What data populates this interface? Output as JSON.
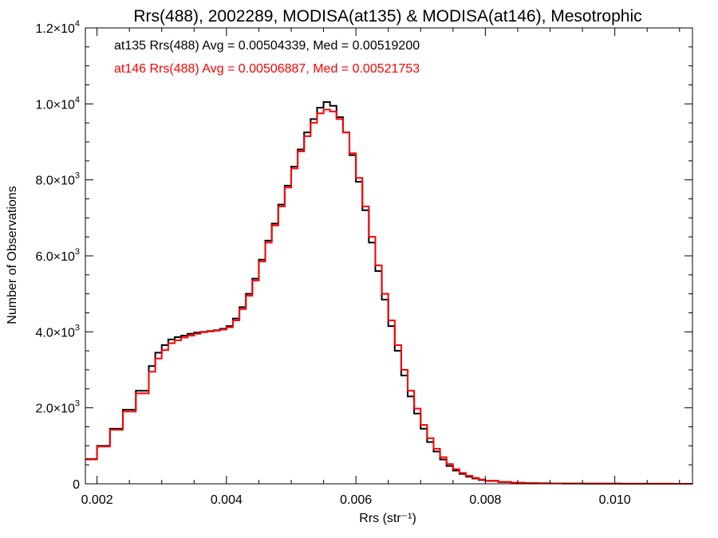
{
  "chart_data": {
    "type": "line",
    "title": "Rrs(488), 2002289, MODISA(at135) & MODISA(at146), Mesotrophic",
    "xlabel": "Rrs (str⁻¹)",
    "ylabel": "Number of Observations",
    "xlim": [
      0.00182,
      0.0112
    ],
    "ylim": [
      0,
      12000
    ],
    "grid": false,
    "legend_placement": "top-left",
    "x_ticks": [
      {
        "value": 0.002,
        "label": "0.002"
      },
      {
        "value": 0.004,
        "label": "0.004"
      },
      {
        "value": 0.006,
        "label": "0.006"
      },
      {
        "value": 0.008,
        "label": "0.008"
      },
      {
        "value": 0.01,
        "label": "0.010"
      }
    ],
    "y_ticks": [
      {
        "value": 0,
        "mantissa": "0",
        "exponent": ""
      },
      {
        "value": 2000,
        "mantissa": "2.0×10",
        "exponent": "3"
      },
      {
        "value": 4000,
        "mantissa": "4.0×10",
        "exponent": "3"
      },
      {
        "value": 6000,
        "mantissa": "6.0×10",
        "exponent": "3"
      },
      {
        "value": 8000,
        "mantissa": "8.0×10",
        "exponent": "3"
      },
      {
        "value": 10000,
        "mantissa": "1.0×10",
        "exponent": "4"
      },
      {
        "value": 12000,
        "mantissa": "1.2×10",
        "exponent": "4"
      }
    ],
    "series": [
      {
        "name": "at135",
        "legend_text": "at135 Rrs(488) Avg = 0.00504339, Med = 0.00519200",
        "color": "#000000",
        "x": [
          0.00182,
          0.002,
          0.0022,
          0.0024,
          0.0026,
          0.0028,
          0.0029,
          0.003,
          0.0031,
          0.0032,
          0.0033,
          0.0034,
          0.0035,
          0.0036,
          0.0037,
          0.0038,
          0.0039,
          0.004,
          0.0041,
          0.0042,
          0.0043,
          0.0044,
          0.0045,
          0.0046,
          0.0047,
          0.0048,
          0.0049,
          0.005,
          0.0051,
          0.0052,
          0.0053,
          0.0054,
          0.0055,
          0.0056,
          0.0057,
          0.0058,
          0.0059,
          0.006,
          0.0061,
          0.0062,
          0.0063,
          0.0064,
          0.0065,
          0.0066,
          0.0067,
          0.0068,
          0.0069,
          0.007,
          0.0071,
          0.0072,
          0.0073,
          0.0074,
          0.0075,
          0.0076,
          0.0077,
          0.0078,
          0.0079,
          0.008,
          0.0082,
          0.0084,
          0.0086,
          0.0088,
          0.009,
          0.0092,
          0.0095,
          0.0098,
          0.0101,
          0.0105,
          0.0109,
          0.0112
        ],
        "y": [
          650,
          1000,
          1450,
          1950,
          2450,
          3100,
          3450,
          3650,
          3800,
          3860,
          3900,
          3950,
          3980,
          4000,
          4020,
          4040,
          4080,
          4150,
          4350,
          4650,
          5000,
          5400,
          5900,
          6400,
          6850,
          7350,
          7850,
          8350,
          8800,
          9250,
          9600,
          9900,
          10050,
          9950,
          9650,
          9250,
          8650,
          7950,
          7200,
          6350,
          5600,
          4850,
          4150,
          3500,
          2850,
          2300,
          1850,
          1450,
          1100,
          850,
          640,
          470,
          350,
          260,
          190,
          140,
          100,
          75,
          45,
          28,
          20,
          14,
          10,
          8,
          6,
          4,
          3,
          2,
          1,
          0
        ]
      },
      {
        "name": "at146",
        "legend_text": "at146 Rrs(488) Avg = 0.00506887, Med = 0.00521753",
        "color": "#ff0000",
        "x": [
          0.00182,
          0.002,
          0.0022,
          0.0024,
          0.0026,
          0.0028,
          0.0029,
          0.003,
          0.0031,
          0.0032,
          0.0033,
          0.0034,
          0.0035,
          0.0036,
          0.0037,
          0.0038,
          0.0039,
          0.004,
          0.0041,
          0.0042,
          0.0043,
          0.0044,
          0.0045,
          0.0046,
          0.0047,
          0.0048,
          0.0049,
          0.005,
          0.0051,
          0.0052,
          0.0053,
          0.0054,
          0.0055,
          0.0056,
          0.0057,
          0.0058,
          0.0059,
          0.006,
          0.0061,
          0.0062,
          0.0063,
          0.0064,
          0.0065,
          0.0066,
          0.0067,
          0.0068,
          0.0069,
          0.007,
          0.0071,
          0.0072,
          0.0073,
          0.0074,
          0.0075,
          0.0076,
          0.0077,
          0.0078,
          0.0079,
          0.008,
          0.0082,
          0.0084,
          0.0086,
          0.0088,
          0.009,
          0.0092,
          0.0095,
          0.0098,
          0.0101,
          0.0105,
          0.0109,
          0.0112
        ],
        "y": [
          640,
          980,
          1420,
          1900,
          2380,
          2950,
          3300,
          3520,
          3700,
          3780,
          3850,
          3900,
          3950,
          3990,
          4010,
          4030,
          4060,
          4120,
          4300,
          4600,
          4950,
          5350,
          5850,
          6350,
          6800,
          7300,
          7800,
          8300,
          8750,
          9150,
          9500,
          9750,
          9850,
          9800,
          9600,
          9250,
          8700,
          8050,
          7300,
          6500,
          5750,
          5000,
          4300,
          3650,
          3000,
          2450,
          1980,
          1550,
          1200,
          920,
          700,
          520,
          385,
          285,
          210,
          155,
          112,
          82,
          50,
          32,
          22,
          15,
          11,
          8,
          6,
          4,
          3,
          2,
          1,
          0
        ]
      }
    ]
  }
}
